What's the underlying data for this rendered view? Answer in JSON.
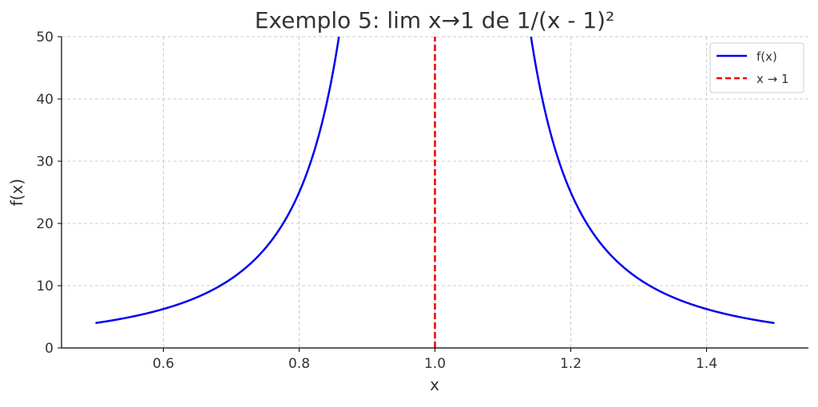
{
  "chart_data": {
    "type": "line",
    "title": "Exemplo 5: lim x→1 de 1/(x - 1)²",
    "xlabel": "x",
    "ylabel": "f(x)",
    "xlim": [
      0.45,
      1.55
    ],
    "ylim": [
      0,
      50
    ],
    "xticks": [
      0.6,
      0.8,
      1.0,
      1.2,
      1.4
    ],
    "xtick_labels": [
      "0.6",
      "0.8",
      "1.0",
      "1.2",
      "1.4"
    ],
    "yticks": [
      0,
      10,
      20,
      30,
      40,
      50
    ],
    "ytick_labels": [
      "0",
      "10",
      "20",
      "30",
      "40",
      "50"
    ],
    "grid": true,
    "legend_position": "top-right",
    "series": [
      {
        "name": "f(x)",
        "color": "#0000ee",
        "style": "solid",
        "x": [
          0.5,
          0.55,
          0.6,
          0.65,
          0.7,
          0.75,
          0.8,
          0.82,
          0.84,
          0.85,
          0.86,
          1.14,
          1.15,
          1.16,
          1.18,
          1.2,
          1.25,
          1.3,
          1.35,
          1.4,
          1.45,
          1.5
        ],
        "y": [
          4.0,
          4.94,
          6.25,
          8.16,
          11.11,
          16.0,
          25.0,
          30.86,
          39.06,
          44.44,
          51.02,
          51.02,
          44.44,
          39.06,
          30.86,
          25.0,
          16.0,
          11.11,
          8.16,
          6.25,
          4.94,
          4.0
        ]
      },
      {
        "name": "x → 1",
        "color": "#ee0000",
        "style": "dashed",
        "x": [
          1.0,
          1.0
        ],
        "y": [
          0,
          50
        ]
      }
    ]
  }
}
